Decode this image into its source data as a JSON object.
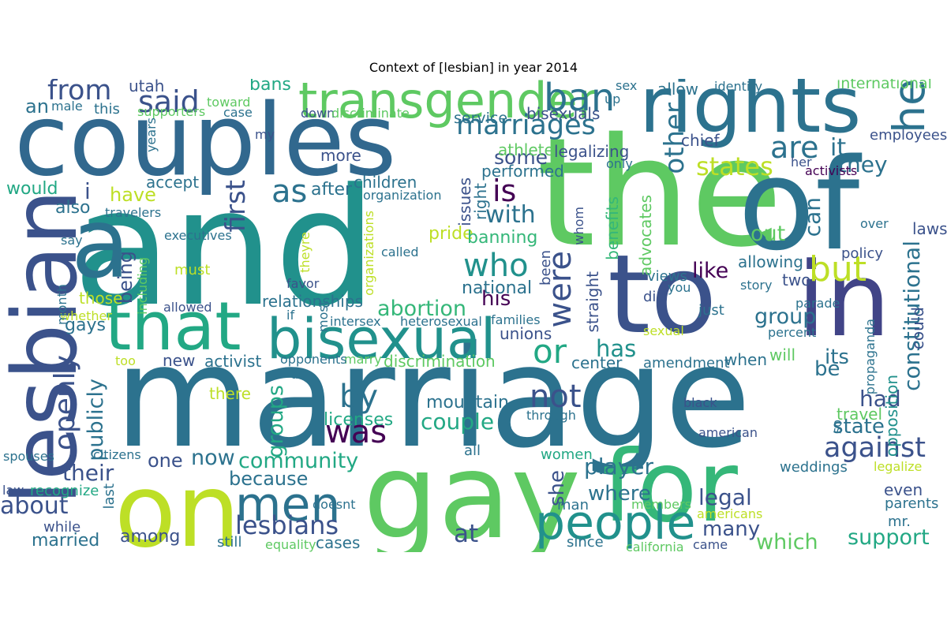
{
  "figure": {
    "title": "Context of [lesbian] in year 2014"
  },
  "word_cloud": {
    "words": [
      {
        "text": "and",
        "color": "#21918c"
      },
      {
        "text": "marriage",
        "color": "#2c728e"
      },
      {
        "text": "the",
        "color": "#5ec962"
      },
      {
        "text": "of",
        "color": "#2c728e"
      },
      {
        "text": "couples",
        "color": "#31688e"
      },
      {
        "text": "to",
        "color": "#3b528b"
      },
      {
        "text": "in",
        "color": "#414487"
      },
      {
        "text": "gay",
        "color": "#5ec962"
      },
      {
        "text": "rights",
        "color": "#2c728e"
      },
      {
        "text": "a",
        "color": "#2c728e"
      },
      {
        "text": "on",
        "color": "#bddf26"
      },
      {
        "text": "for",
        "color": "#35b779"
      },
      {
        "text": "lesbian",
        "color": "#3b528b"
      },
      {
        "text": "that",
        "color": "#22a884"
      },
      {
        "text": "bisexual",
        "color": "#21918c"
      },
      {
        "text": "transgender",
        "color": "#5ec962"
      },
      {
        "text": "people",
        "color": "#21918c"
      },
      {
        "text": "men",
        "color": "#2c728e"
      },
      {
        "text": "said",
        "color": "#3b528b"
      },
      {
        "text": "is",
        "color": "#440154"
      },
      {
        "text": "marriages",
        "color": "#2c728e"
      },
      {
        "text": "who",
        "color": "#21918c"
      },
      {
        "text": "are",
        "color": "#2c728e"
      },
      {
        "text": "ban",
        "color": "#2c728e"
      },
      {
        "text": "from",
        "color": "#3b528b"
      },
      {
        "text": "by",
        "color": "#2c728e"
      },
      {
        "text": "was",
        "color": "#440154"
      },
      {
        "text": "against",
        "color": "#3b528b"
      },
      {
        "text": "he",
        "color": "#2c728e"
      },
      {
        "text": "openly",
        "color": "#3b528b"
      },
      {
        "text": "or",
        "color": "#22a884"
      },
      {
        "text": "but",
        "color": "#bddf26"
      },
      {
        "text": "states",
        "color": "#bddf26"
      },
      {
        "text": "as",
        "color": "#2c728e"
      },
      {
        "text": "were",
        "color": "#3b528b"
      },
      {
        "text": "not",
        "color": "#3b528b"
      },
      {
        "text": "lesbians",
        "color": "#3b528b"
      },
      {
        "text": "with",
        "color": "#2c728e"
      },
      {
        "text": "first",
        "color": "#3b528b"
      },
      {
        "text": "abortion",
        "color": "#35b779"
      },
      {
        "text": "constitutional",
        "color": "#2c728e"
      },
      {
        "text": "publicly",
        "color": "#2c728e"
      },
      {
        "text": "couple",
        "color": "#22a884"
      },
      {
        "text": "about",
        "color": "#3b528b"
      },
      {
        "text": "community",
        "color": "#22a884"
      },
      {
        "text": "player",
        "color": "#2c728e"
      },
      {
        "text": "support",
        "color": "#22a884"
      },
      {
        "text": "which",
        "color": "#5ec962"
      },
      {
        "text": "state",
        "color": "#2c728e"
      },
      {
        "text": "group",
        "color": "#2c728e"
      },
      {
        "text": "groups",
        "color": "#22a884"
      },
      {
        "text": "it",
        "color": "#2c728e"
      },
      {
        "text": "they",
        "color": "#2c728e"
      },
      {
        "text": "can",
        "color": "#2c728e"
      },
      {
        "text": "out",
        "color": "#5ec962"
      },
      {
        "text": "like",
        "color": "#440154"
      },
      {
        "text": "has",
        "color": "#21918c"
      },
      {
        "text": "had",
        "color": "#3b528b"
      },
      {
        "text": "be",
        "color": "#2c728e"
      },
      {
        "text": "its",
        "color": "#2c728e"
      },
      {
        "text": "legal",
        "color": "#3b528b"
      },
      {
        "text": "many",
        "color": "#3b528b"
      },
      {
        "text": "at",
        "color": "#3b528b"
      },
      {
        "text": "where",
        "color": "#2c728e"
      },
      {
        "text": "now",
        "color": "#2c728e"
      },
      {
        "text": "because",
        "color": "#2c728e"
      },
      {
        "text": "one",
        "color": "#3b528b"
      },
      {
        "text": "their",
        "color": "#3b528b"
      },
      {
        "text": "married",
        "color": "#2c728e"
      },
      {
        "text": "among",
        "color": "#3b528b"
      },
      {
        "text": "his",
        "color": "#440154"
      },
      {
        "text": "some",
        "color": "#3b528b"
      },
      {
        "text": "other",
        "color": "#2c728e"
      },
      {
        "text": "pride",
        "color": "#bddf26"
      },
      {
        "text": "have",
        "color": "#bddf26"
      },
      {
        "text": "after",
        "color": "#2c728e"
      },
      {
        "text": "would",
        "color": "#22a884"
      },
      {
        "text": "also",
        "color": "#2c728e"
      },
      {
        "text": "i",
        "color": "#3b528b"
      },
      {
        "text": "an",
        "color": "#2c728e"
      },
      {
        "text": "banning",
        "color": "#35b779"
      },
      {
        "text": "being",
        "color": "#3b528b"
      },
      {
        "text": "gays",
        "color": "#2c728e"
      },
      {
        "text": "relationships",
        "color": "#2c728e"
      },
      {
        "text": "unions",
        "color": "#3b528b"
      },
      {
        "text": "she",
        "color": "#3b528b"
      },
      {
        "text": "bans",
        "color": "#22a884"
      },
      {
        "text": "international",
        "color": "#5ec962"
      },
      {
        "text": "opposition",
        "color": "#21918c"
      },
      {
        "text": "laws",
        "color": "#3b528b"
      },
      {
        "text": "allowing",
        "color": "#2c728e"
      },
      {
        "text": "two",
        "color": "#3b528b"
      },
      {
        "text": "will",
        "color": "#5ec962"
      },
      {
        "text": "when",
        "color": "#2c728e"
      },
      {
        "text": "center",
        "color": "#2c728e"
      },
      {
        "text": "activist",
        "color": "#2c728e"
      },
      {
        "text": "national",
        "color": "#2c728e"
      },
      {
        "text": "straight",
        "color": "#3b528b"
      },
      {
        "text": "advocates",
        "color": "#5ec962"
      },
      {
        "text": "benefits",
        "color": "#35b779"
      },
      {
        "text": "issues",
        "color": "#3b528b"
      },
      {
        "text": "right",
        "color": "#2c728e"
      },
      {
        "text": "performed",
        "color": "#2c728e"
      },
      {
        "text": "children",
        "color": "#2c728e"
      },
      {
        "text": "more",
        "color": "#3b528b"
      },
      {
        "text": "accept",
        "color": "#2c728e"
      },
      {
        "text": "athletes",
        "color": "#5ec962"
      },
      {
        "text": "legalizing",
        "color": "#3b528b"
      },
      {
        "text": "bisexuals",
        "color": "#3b528b"
      },
      {
        "text": "service",
        "color": "#2c728e"
      },
      {
        "text": "utah",
        "color": "#3b528b"
      },
      {
        "text": "this",
        "color": "#2c728e"
      },
      {
        "text": "toward",
        "color": "#5ec962"
      },
      {
        "text": "case",
        "color": "#2c728e"
      },
      {
        "text": "down",
        "color": "#3b528b"
      },
      {
        "text": "discriminate",
        "color": "#5ec962"
      },
      {
        "text": "my",
        "color": "#3b528b"
      },
      {
        "text": "supporters",
        "color": "#5ec962"
      },
      {
        "text": "male",
        "color": "#2c728e"
      },
      {
        "text": "sex",
        "color": "#2c728e"
      },
      {
        "text": "allow",
        "color": "#2c728e"
      },
      {
        "text": "identity",
        "color": "#2c728e"
      },
      {
        "text": "up",
        "color": "#2c728e"
      },
      {
        "text": "chief",
        "color": "#3b528b"
      },
      {
        "text": "employees",
        "color": "#3b528b"
      },
      {
        "text": "her",
        "color": "#3b528b"
      },
      {
        "text": "activists",
        "color": "#440154"
      },
      {
        "text": "only",
        "color": "#2c728e"
      },
      {
        "text": "whom",
        "color": "#3b528b"
      },
      {
        "text": "over",
        "color": "#2c728e"
      },
      {
        "text": "policy",
        "color": "#3b528b"
      },
      {
        "text": "views",
        "color": "#2c728e"
      },
      {
        "text": "you",
        "color": "#2c728e"
      },
      {
        "text": "story",
        "color": "#2c728e"
      },
      {
        "text": "did",
        "color": "#3b528b"
      },
      {
        "text": "just",
        "color": "#2c728e"
      },
      {
        "text": "parade",
        "color": "#2c728e"
      },
      {
        "text": "sexual",
        "color": "#bddf26"
      },
      {
        "text": "percent",
        "color": "#2c728e"
      },
      {
        "text": "propaganda",
        "color": "#2c728e"
      },
      {
        "text": "could",
        "color": "#3b528b"
      },
      {
        "text": "amendment",
        "color": "#2c728e"
      },
      {
        "text": "black",
        "color": "#3b528b"
      },
      {
        "text": "travel",
        "color": "#5ec962"
      },
      {
        "text": "so",
        "color": "#2c728e"
      },
      {
        "text": "mountain",
        "color": "#2c728e"
      },
      {
        "text": "licenses",
        "color": "#22a884"
      },
      {
        "text": "discrimination",
        "color": "#5ec962"
      },
      {
        "text": "marry",
        "color": "#5ec962"
      },
      {
        "text": "opponents",
        "color": "#2c728e"
      },
      {
        "text": "do",
        "color": "#2c728e"
      },
      {
        "text": "there",
        "color": "#bddf26"
      },
      {
        "text": "new",
        "color": "#3b528b"
      },
      {
        "text": "through",
        "color": "#2c728e"
      },
      {
        "text": "american",
        "color": "#3b528b"
      },
      {
        "text": "all",
        "color": "#2c728e"
      },
      {
        "text": "women",
        "color": "#22a884"
      },
      {
        "text": "man",
        "color": "#2c728e"
      },
      {
        "text": "members",
        "color": "#5ec962"
      },
      {
        "text": "americans",
        "color": "#bddf26"
      },
      {
        "text": "mr.",
        "color": "#2c728e"
      },
      {
        "text": "parents",
        "color": "#2c728e"
      },
      {
        "text": "even",
        "color": "#3b528b"
      },
      {
        "text": "legalize",
        "color": "#bddf26"
      },
      {
        "text": "weddings",
        "color": "#2c728e"
      },
      {
        "text": "since",
        "color": "#2c728e"
      },
      {
        "text": "california",
        "color": "#5ec962"
      },
      {
        "text": "came",
        "color": "#3b528b"
      },
      {
        "text": "cases",
        "color": "#2c728e"
      },
      {
        "text": "equality",
        "color": "#5ec962"
      },
      {
        "text": "still",
        "color": "#2c728e"
      },
      {
        "text": "doesnt",
        "color": "#2c728e"
      },
      {
        "text": "citizens",
        "color": "#2c728e"
      },
      {
        "text": "spouses",
        "color": "#2c728e"
      },
      {
        "text": "law",
        "color": "#3b528b"
      },
      {
        "text": "recognize",
        "color": "#22a884"
      },
      {
        "text": "last",
        "color": "#2c728e"
      },
      {
        "text": "while",
        "color": "#3b528b"
      },
      {
        "text": "too",
        "color": "#bddf26"
      },
      {
        "text": "whether",
        "color": "#bddf26"
      },
      {
        "text": "those",
        "color": "#bddf26"
      },
      {
        "text": "month",
        "color": "#2c728e"
      },
      {
        "text": "including",
        "color": "#5ec962"
      },
      {
        "text": "allowed",
        "color": "#3b528b"
      },
      {
        "text": "if",
        "color": "#2c728e"
      },
      {
        "text": "most",
        "color": "#2c728e"
      },
      {
        "text": "intersex",
        "color": "#2c728e"
      },
      {
        "text": "heterosexual",
        "color": "#2c728e"
      },
      {
        "text": "families",
        "color": "#2c728e"
      },
      {
        "text": "favor",
        "color": "#3b528b"
      },
      {
        "text": "must",
        "color": "#bddf26"
      },
      {
        "text": "theyre",
        "color": "#bddf26"
      },
      {
        "text": "organizations",
        "color": "#bddf26"
      },
      {
        "text": "called",
        "color": "#2c728e"
      },
      {
        "text": "been",
        "color": "#3b528b"
      },
      {
        "text": "executives",
        "color": "#2c728e"
      },
      {
        "text": "say",
        "color": "#2c728e"
      },
      {
        "text": "travelers",
        "color": "#2c728e"
      },
      {
        "text": "organization",
        "color": "#2c728e"
      },
      {
        "text": "years",
        "color": "#2c728e"
      }
    ]
  }
}
